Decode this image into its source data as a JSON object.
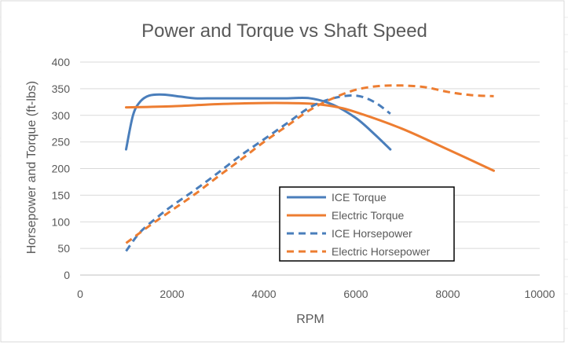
{
  "chart_data": {
    "type": "scatter",
    "title": "Power and Torque vs Shaft Speed",
    "xlabel": "RPM",
    "ylabel": "Horsepower and Torque (ft-lbs)",
    "xlim": [
      0,
      10000
    ],
    "ylim": [
      0,
      400
    ],
    "x_ticks": [
      "0",
      "2000",
      "4000",
      "6000",
      "8000",
      "10000"
    ],
    "y_ticks": [
      "0",
      "50",
      "100",
      "150",
      "200",
      "250",
      "300",
      "350",
      "400"
    ],
    "grid": "horizontal",
    "legend_position": "center-right",
    "series": [
      {
        "name": "ICE Torque",
        "color": "#4a7ebb",
        "dash": "solid",
        "x": [
          1000,
          1150,
          1300,
          1500,
          1800,
          2200,
          2500,
          3000,
          4000,
          4500,
          5000,
          5500,
          6000,
          6400,
          6750
        ],
        "y": [
          236,
          300,
          325,
          337,
          339,
          335,
          332,
          332,
          332,
          332,
          332,
          320,
          295,
          265,
          236
        ]
      },
      {
        "name": "Electric Torque",
        "color": "#ed7d31",
        "dash": "solid",
        "x": [
          1000,
          2000,
          3000,
          4000,
          4500,
          5000,
          5500,
          6000,
          7000,
          8000,
          9000
        ],
        "y": [
          315,
          317,
          321,
          323,
          323,
          322,
          317,
          306,
          275,
          236,
          196
        ]
      },
      {
        "name": "ICE Horsepower",
        "color": "#4a7ebb",
        "dash": "dashed",
        "x": [
          1000,
          1300,
          1700,
          2000,
          2500,
          3000,
          3500,
          4000,
          4500,
          5000,
          5500,
          6000,
          6400,
          6750
        ],
        "y": [
          45,
          80,
          110,
          130,
          160,
          192,
          225,
          255,
          285,
          315,
          332,
          337,
          325,
          303
        ]
      },
      {
        "name": "Electric Horsepower",
        "color": "#ed7d31",
        "dash": "dashed",
        "x": [
          1000,
          1500,
          2000,
          2500,
          3000,
          3500,
          4000,
          4500,
          5000,
          5500,
          6000,
          6500,
          7000,
          7500,
          8000,
          8500,
          9000
        ],
        "y": [
          60,
          92,
          122,
          152,
          185,
          217,
          250,
          280,
          310,
          332,
          348,
          355,
          356,
          353,
          344,
          338,
          336
        ]
      }
    ]
  }
}
